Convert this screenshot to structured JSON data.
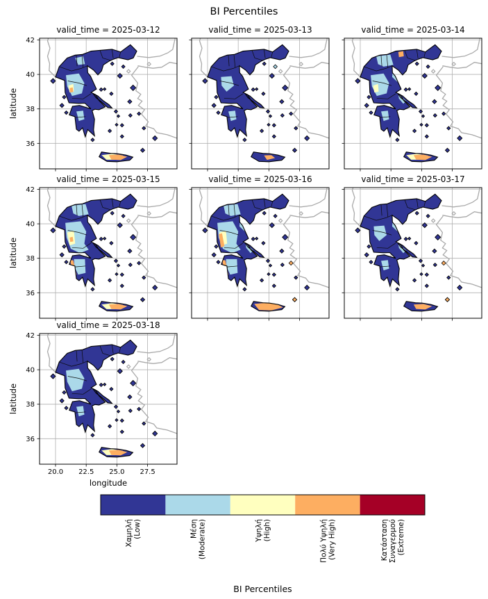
{
  "figure": {
    "suptitle": "BI Percentiles",
    "background": "#ffffff"
  },
  "chart_data": {
    "type": "heatmap",
    "subtype": "faceted_categorical_map",
    "region_depicted": "Greece",
    "title": "BI Percentiles",
    "facet_variable": "valid_time",
    "xlabel": "longitude",
    "ylabel": "latitude",
    "xlim": [
      18.7,
      29.9
    ],
    "ylim": [
      34.52,
      42.1
    ],
    "grid": "on",
    "xticks": [
      {
        "v": 20.0,
        "label": "20.0"
      },
      {
        "v": 22.5,
        "label": "22.5"
      },
      {
        "v": 25.0,
        "label": "25.0"
      },
      {
        "v": 27.5,
        "label": "27.5"
      }
    ],
    "yticks": [
      {
        "v": 42,
        "label": "42"
      },
      {
        "v": 40,
        "label": "40"
      },
      {
        "v": 38,
        "label": "38"
      },
      {
        "v": 36,
        "label": "36"
      }
    ],
    "facets": [
      {
        "date": "2025-03-12",
        "title": "valid_time = 2025-03-12",
        "overlays": [
          "lb_central",
          "lb_north_small",
          "lb_pelop_small",
          "yl_west_small",
          "or_west_dot",
          "crete_yl",
          "crete_or"
        ]
      },
      {
        "date": "2025-03-13",
        "title": "valid_time = 2025-03-13",
        "overlays": [
          "lb_central_small",
          "lb_pelop_small",
          "ne_lb_dot",
          "crete_or_small"
        ]
      },
      {
        "date": "2025-03-14",
        "title": "valid_time = 2025-03-14",
        "overlays": [
          "lb_central",
          "lb_north",
          "lb_east",
          "lb_pelop_small",
          "or_north",
          "yl_west_small",
          "crete_yl",
          "crete_or"
        ]
      },
      {
        "date": "2025-03-15",
        "title": "valid_time = 2025-03-15",
        "overlays": [
          "lb_wide",
          "lb_north",
          "lb_pelop",
          "yl_west",
          "or_west_dot",
          "pelop_west_or",
          "crete_yl",
          "crete_or"
        ]
      },
      {
        "date": "2025-03-16",
        "title": "valid_time = 2025-03-16",
        "overlays": [
          "lb_wide",
          "lb_north",
          "lb_east",
          "lb_pelop",
          "yl_west",
          "or_west_strip",
          "pelop_west_or",
          "crete_or_big",
          "isl_or"
        ]
      },
      {
        "date": "2025-03-17",
        "title": "valid_time = 2025-03-17",
        "overlays": [
          "lb_central_small",
          "lb_east",
          "lb_pelop_small",
          "crete_or",
          "isl_or"
        ]
      },
      {
        "date": "2025-03-18",
        "title": "valid_time = 2025-03-18",
        "overlays": [
          "lb_central",
          "lb_pelop_small",
          "crete_yl",
          "crete_or"
        ]
      }
    ],
    "colorbar": {
      "label": "BI Percentiles",
      "orientation": "horizontal",
      "categories": [
        {
          "key": "low",
          "label": "Χαμηλή\n(Low)",
          "color": "#313695"
        },
        {
          "key": "moderate",
          "label": "Μέση\n(Moderate)",
          "color": "#abd9e9"
        },
        {
          "key": "high",
          "label": "Υψηλή\n(High)",
          "color": "#ffffbf"
        },
        {
          "key": "very_high",
          "label": "Πολύ Υψηλή\n(Very High)",
          "color": "#fdae61"
        },
        {
          "key": "extreme",
          "label": "Κατάσταση\nΣυναγερμού\n(Extreme)",
          "color": "#a50026"
        }
      ]
    }
  }
}
